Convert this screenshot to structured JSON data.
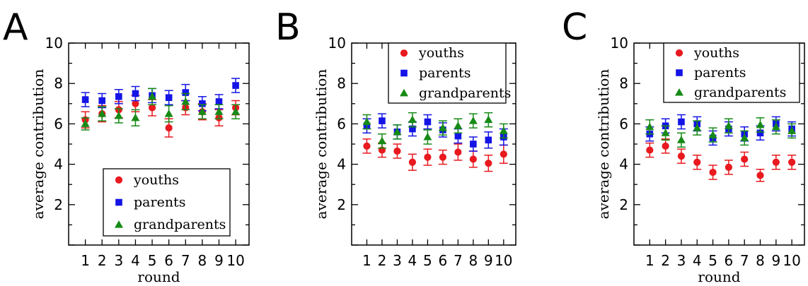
{
  "colors": {
    "youths": "#e8191f",
    "parents": "#1414e6",
    "grandparents": "#168a16"
  },
  "chart_data": [
    {
      "type": "scatter",
      "panel_label": "A",
      "xlabel": "round",
      "ylabel": "average contribution",
      "ylim": [
        0,
        10
      ],
      "xlim": [
        0,
        10.8
      ],
      "y_ticks": [
        2,
        4,
        6,
        8,
        10
      ],
      "x_ticks": [
        1,
        2,
        3,
        4,
        5,
        6,
        7,
        8,
        9,
        10
      ],
      "x_tick_labels": [
        "1",
        "2",
        "3",
        "4",
        "5",
        "6",
        "7",
        "8",
        "9",
        "10"
      ],
      "legend_position": "bottom-right",
      "series": [
        {
          "name": "youths",
          "marker": "circle",
          "x": [
            1,
            2,
            3,
            4,
            5,
            6,
            7,
            8,
            9,
            10
          ],
          "y": [
            6.2,
            6.5,
            6.7,
            7.0,
            6.8,
            5.8,
            6.8,
            6.6,
            6.3,
            6.8
          ],
          "err": [
            0.4,
            0.4,
            0.4,
            0.4,
            0.4,
            0.45,
            0.35,
            0.4,
            0.4,
            0.35
          ]
        },
        {
          "name": "parents",
          "marker": "square",
          "x": [
            1,
            2,
            3,
            4,
            5,
            6,
            7,
            8,
            9,
            10
          ],
          "y": [
            7.2,
            7.15,
            7.35,
            7.5,
            7.4,
            7.3,
            7.55,
            7.0,
            7.1,
            7.9
          ],
          "err": [
            0.35,
            0.35,
            0.35,
            0.35,
            0.35,
            0.35,
            0.4,
            0.35,
            0.35,
            0.35
          ]
        },
        {
          "name": "grandparents",
          "marker": "triangle",
          "x": [
            1,
            2,
            3,
            4,
            5,
            6,
            7,
            8,
            9,
            10
          ],
          "y": [
            6.0,
            6.5,
            6.4,
            6.3,
            7.35,
            6.5,
            7.1,
            6.6,
            6.6,
            6.6
          ],
          "err": [
            0.3,
            0.35,
            0.35,
            0.4,
            0.4,
            0.4,
            0.4,
            0.35,
            0.35,
            0.35
          ]
        }
      ]
    },
    {
      "type": "scatter",
      "panel_label": "B",
      "xlabel": "",
      "ylabel": "average contribution",
      "ylim": [
        0,
        10
      ],
      "xlim": [
        0,
        10.8
      ],
      "y_ticks": [
        2,
        4,
        6,
        8,
        10
      ],
      "x_ticks": [
        1,
        2,
        3,
        4,
        5,
        6,
        7,
        8,
        9,
        10
      ],
      "x_tick_labels": [
        "1",
        "2",
        "3",
        "4",
        "5",
        "6",
        "7",
        "8",
        "9",
        "10"
      ],
      "legend_position": "top-right",
      "series": [
        {
          "name": "youths",
          "marker": "circle",
          "x": [
            1,
            2,
            3,
            4,
            5,
            6,
            7,
            8,
            9,
            10
          ],
          "y": [
            4.9,
            4.7,
            4.65,
            4.1,
            4.35,
            4.35,
            4.6,
            4.25,
            4.05,
            4.5
          ],
          "err": [
            0.35,
            0.35,
            0.35,
            0.4,
            0.4,
            0.35,
            0.4,
            0.4,
            0.4,
            0.45
          ]
        },
        {
          "name": "parents",
          "marker": "square",
          "x": [
            1,
            2,
            3,
            4,
            5,
            6,
            7,
            8,
            9,
            10
          ],
          "y": [
            5.9,
            6.15,
            5.6,
            5.75,
            6.1,
            5.7,
            5.4,
            5.0,
            5.2,
            5.35
          ],
          "err": [
            0.35,
            0.35,
            0.35,
            0.35,
            0.35,
            0.35,
            0.35,
            0.35,
            0.4,
            0.4
          ]
        },
        {
          "name": "grandparents",
          "marker": "triangle",
          "x": [
            1,
            2,
            3,
            4,
            5,
            6,
            7,
            8,
            9,
            10
          ],
          "y": [
            6.1,
            5.15,
            5.6,
            6.2,
            5.35,
            5.8,
            5.9,
            6.15,
            6.2,
            5.65
          ],
          "err": [
            0.35,
            0.35,
            0.35,
            0.35,
            0.35,
            0.35,
            0.35,
            0.35,
            0.35,
            0.35
          ]
        }
      ]
    },
    {
      "type": "scatter",
      "panel_label": "C",
      "xlabel": "round",
      "ylabel": "average contribution",
      "ylim": [
        0,
        10
      ],
      "xlim": [
        0,
        10.8
      ],
      "y_ticks": [
        2,
        4,
        6,
        8,
        10
      ],
      "x_ticks": [
        1,
        2,
        3,
        4,
        5,
        6,
        7,
        8,
        9,
        10
      ],
      "x_tick_labels": [
        "1",
        "2",
        "3",
        "4",
        "5",
        "6",
        "7",
        "8",
        "9",
        "10"
      ],
      "legend_position": "top-right",
      "series": [
        {
          "name": "youths",
          "marker": "circle",
          "x": [
            1,
            2,
            3,
            4,
            5,
            6,
            7,
            8,
            9,
            10
          ],
          "y": [
            4.7,
            4.9,
            4.4,
            4.1,
            3.6,
            3.85,
            4.25,
            3.45,
            4.1,
            4.1
          ],
          "err": [
            0.35,
            0.35,
            0.35,
            0.35,
            0.35,
            0.35,
            0.35,
            0.3,
            0.35,
            0.35
          ]
        },
        {
          "name": "parents",
          "marker": "square",
          "x": [
            1,
            2,
            3,
            4,
            5,
            6,
            7,
            8,
            9,
            10
          ],
          "y": [
            5.5,
            5.9,
            6.1,
            6.0,
            5.3,
            5.75,
            5.5,
            5.55,
            6.0,
            5.75
          ],
          "err": [
            0.35,
            0.35,
            0.35,
            0.35,
            0.35,
            0.35,
            0.35,
            0.35,
            0.35,
            0.35
          ]
        },
        {
          "name": "grandparents",
          "marker": "triangle",
          "x": [
            1,
            2,
            3,
            4,
            5,
            6,
            7,
            8,
            9,
            10
          ],
          "y": [
            5.85,
            5.55,
            5.2,
            5.8,
            5.45,
            5.9,
            5.3,
            5.95,
            5.85,
            5.65
          ],
          "err": [
            0.35,
            0.35,
            0.35,
            0.35,
            0.35,
            0.35,
            0.35,
            0.35,
            0.35,
            0.35
          ]
        }
      ]
    }
  ]
}
